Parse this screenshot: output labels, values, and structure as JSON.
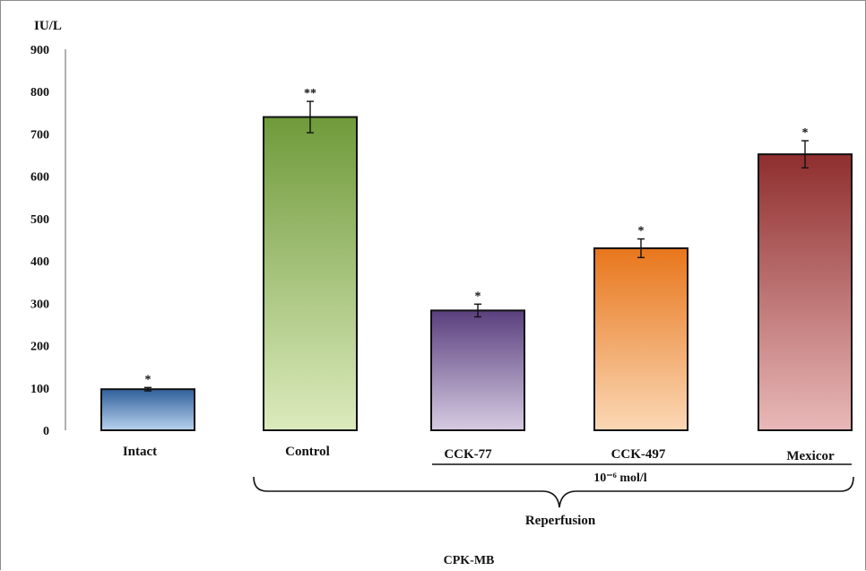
{
  "chart_data": {
    "type": "bar",
    "ylabel": "IU/L",
    "ylim": [
      0,
      900
    ],
    "yticks": [
      "0",
      "100",
      "200",
      "300",
      "400",
      "500",
      "600",
      "700",
      "800",
      "900"
    ],
    "categories": [
      "Intact",
      "Control",
      "CCK-77",
      "CCK-497",
      "Mexicor"
    ],
    "values": [
      97,
      740,
      283,
      430,
      652
    ],
    "errors": [
      4,
      37,
      15,
      22,
      32
    ],
    "significance": [
      "*",
      "**",
      "*",
      "*",
      "*"
    ],
    "bar_colors": [
      {
        "top": "#2f5f9a",
        "bottom": "#b9d2ee"
      },
      {
        "top": "#6f9a3a",
        "bottom": "#dcebbd"
      },
      {
        "top": "#5a3f7e",
        "bottom": "#d6cbe2"
      },
      {
        "top": "#e8761c",
        "bottom": "#fbd8b5"
      },
      {
        "top": "#8f2e2e",
        "bottom": "#e9b8b8"
      }
    ],
    "group_labels": {
      "concentration": "10⁻⁶ mol/l",
      "reperfusion": "Reperfusion"
    },
    "caption": "CPK-MB",
    "grid": false,
    "legend": "none"
  }
}
